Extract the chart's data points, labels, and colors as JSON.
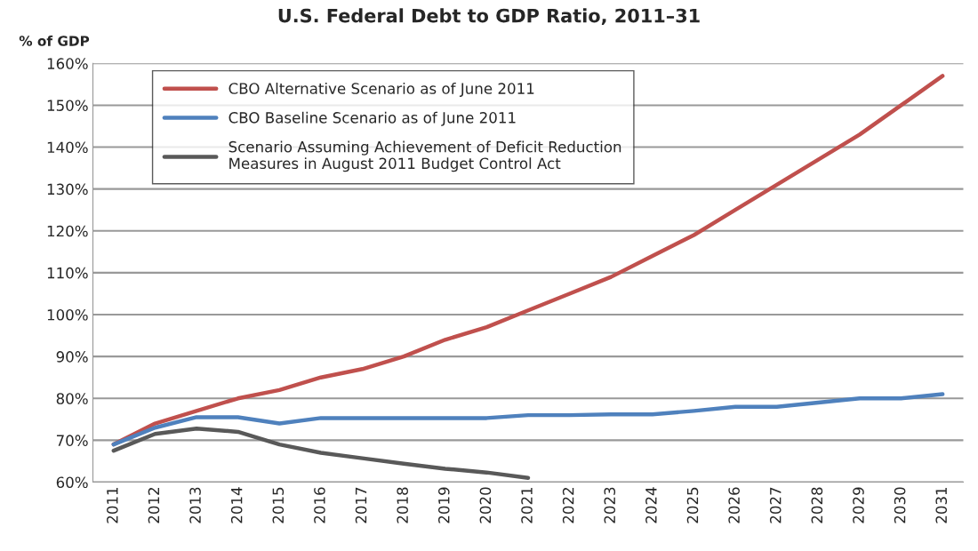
{
  "chart_data": {
    "type": "line",
    "title": "U.S. Federal Debt to GDP Ratio, 2011–31",
    "ylabel": "% of GDP",
    "categories": [
      "2011",
      "2012",
      "2013",
      "2014",
      "2015",
      "2016",
      "2017",
      "2018",
      "2019",
      "2020",
      "2021",
      "2022",
      "2023",
      "2024",
      "2025",
      "2026",
      "2027",
      "2028",
      "2029",
      "2030",
      "2031"
    ],
    "series": [
      {
        "name": "CBO Alternative Scenario as of June 2011",
        "color": "#c0504d",
        "values": [
          69,
          74,
          77,
          80,
          82,
          85,
          87,
          90,
          94,
          97,
          101,
          105,
          109,
          114,
          119,
          125,
          131,
          137,
          143,
          150,
          157
        ]
      },
      {
        "name": "CBO Baseline Scenario as of June 2011",
        "color": "#4f81bd",
        "values": [
          69,
          73,
          75.5,
          75.5,
          74,
          75.3,
          75.3,
          75.3,
          75.3,
          75.3,
          76,
          76,
          76.2,
          76.2,
          77,
          78,
          78,
          79,
          80,
          80,
          81
        ]
      },
      {
        "name": "Scenario Assuming Achievement of Deficit Reduction\nMeasures in August 2011 Budget Control Act",
        "color": "#595959",
        "values": [
          67.5,
          71.5,
          72.8,
          72,
          69,
          67,
          65.7,
          64.4,
          63.2,
          62.3,
          61,
          null,
          null,
          null,
          null,
          null,
          null,
          null,
          null,
          null,
          null
        ]
      }
    ],
    "ylim": [
      60,
      160
    ],
    "yticks": [
      {
        "value": 60,
        "label": "60%"
      },
      {
        "value": 70,
        "label": "70%"
      },
      {
        "value": 80,
        "label": "80%"
      },
      {
        "value": 90,
        "label": "90%"
      },
      {
        "value": 100,
        "label": "100%"
      },
      {
        "value": 110,
        "label": "110%"
      },
      {
        "value": 120,
        "label": "120%"
      },
      {
        "value": 130,
        "label": "130%"
      },
      {
        "value": 140,
        "label": "140%"
      },
      {
        "value": 150,
        "label": "150%"
      },
      {
        "value": 160,
        "label": "160%"
      }
    ],
    "grid": "y",
    "legend": "top left",
    "line_style": "solid",
    "marker": "none"
  }
}
